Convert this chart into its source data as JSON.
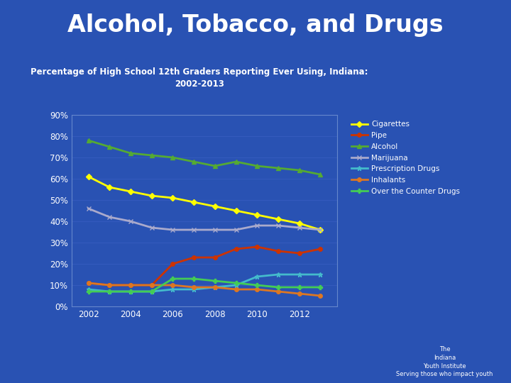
{
  "title": "Alcohol, Tobacco, and Drugs",
  "subtitle": "Percentage of High School 12th Graders Reporting Ever Using, Indiana:\n2002-2013",
  "background_color": "#2952b3",
  "plot_bg_color": "#2952b3",
  "title_color": "#ffffff",
  "subtitle_color": "#ffffff",
  "footer_color": "#8b5a9a",
  "years": [
    2002,
    2003,
    2004,
    2005,
    2006,
    2007,
    2008,
    2009,
    2010,
    2011,
    2012,
    2013
  ],
  "series": [
    {
      "name": "Cigarettes",
      "color": "#ffff00",
      "marker": "D",
      "markersize": 4,
      "linewidth": 2,
      "values": [
        61,
        56,
        54,
        52,
        51,
        49,
        47,
        45,
        43,
        41,
        39,
        36
      ]
    },
    {
      "name": "Pipe",
      "color": "#cc3300",
      "marker": "o",
      "markersize": 4,
      "linewidth": 2,
      "values": [
        11,
        10,
        10,
        10,
        20,
        23,
        23,
        27,
        28,
        26,
        25,
        27
      ]
    },
    {
      "name": "Alcohol",
      "color": "#55aa33",
      "marker": "^",
      "markersize": 4,
      "linewidth": 2,
      "values": [
        78,
        75,
        72,
        71,
        70,
        68,
        66,
        68,
        66,
        65,
        64,
        62
      ]
    },
    {
      "name": "Marijuana",
      "color": "#aaaacc",
      "marker": "x",
      "markersize": 5,
      "linewidth": 2,
      "values": [
        46,
        42,
        40,
        37,
        36,
        36,
        36,
        36,
        38,
        38,
        37,
        36
      ]
    },
    {
      "name": "Prescription Drugs",
      "color": "#44bbcc",
      "marker": "*",
      "markersize": 5,
      "linewidth": 2,
      "values": [
        8,
        7,
        7,
        7,
        8,
        8,
        9,
        10,
        14,
        15,
        15,
        15
      ]
    },
    {
      "name": "Inhalants",
      "color": "#dd7722",
      "marker": "o",
      "markersize": 4,
      "linewidth": 2,
      "values": [
        11,
        10,
        10,
        10,
        10,
        9,
        9,
        8,
        8,
        7,
        6,
        5
      ]
    },
    {
      "name": "Over the Counter Drugs",
      "color": "#44cc55",
      "marker": "P",
      "markersize": 5,
      "linewidth": 2,
      "values": [
        7,
        7,
        7,
        7,
        13,
        13,
        12,
        11,
        10,
        9,
        9,
        9
      ]
    }
  ],
  "ylim": [
    0,
    90
  ],
  "yticks": [
    0,
    10,
    20,
    30,
    40,
    50,
    60,
    70,
    80,
    90
  ],
  "xtick_labels": [
    "2002",
    "2004",
    "2006",
    "2008",
    "2010",
    "2012"
  ],
  "xtick_positions": [
    2002,
    2004,
    2006,
    2008,
    2010,
    2012
  ],
  "tick_color": "#ffffff",
  "legend_text_color": "#ffffff",
  "grid_color": "#4466cc",
  "grid_alpha": 0.6
}
